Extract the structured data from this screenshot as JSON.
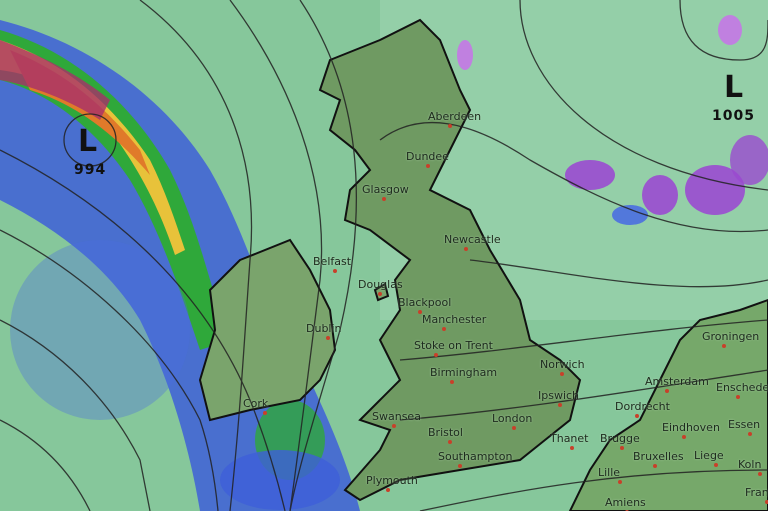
{
  "pressure_systems": [
    {
      "symbol": "L",
      "value": "994"
    },
    {
      "symbol": "L",
      "value": "1005"
    }
  ],
  "cities": [
    "Aberdeen",
    "Dundee",
    "Glasgow",
    "Newcastle",
    "Belfast",
    "Douglas",
    "Blackpool",
    "Manchester",
    "Dublin",
    "Stoke on Trent",
    "Birmingham",
    "Norwich",
    "Ipswich",
    "Cork",
    "Swansea",
    "Bristol",
    "London",
    "Thanet",
    "Southampton",
    "Plymouth",
    "Amsterdam",
    "Enschede",
    "Groningen",
    "Dordrecht",
    "Eindhoven",
    "Essen",
    "Brugge",
    "Bruxelles",
    "Lille",
    "Liege",
    "Koln",
    "Amiens",
    "Frankfurt"
  ],
  "colors": {
    "sea": "#8ccfa2",
    "land": "#6f9a62",
    "rain_light": "#4a6ee0",
    "rain_moderate": "#2fa83a",
    "rain_heavy": "#e07a2a",
    "snow": "#b070d8"
  }
}
